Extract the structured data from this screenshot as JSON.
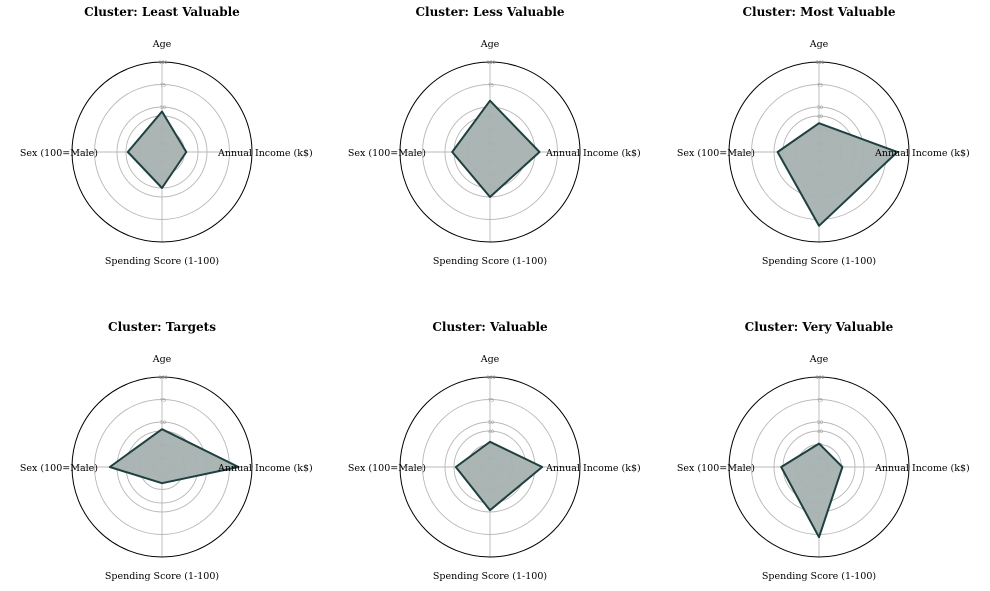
{
  "chart_data": [
    {
      "type": "radar",
      "title": "Cluster: Least Valuable",
      "axes": [
        "Age",
        "Annual Income (k$)",
        "Spending Score (1-100)",
        "Sex (100=Male)"
      ],
      "ticks": [
        10,
        25,
        40,
        50,
        75,
        100
      ],
      "tick_labels": [
        "10",
        "25",
        "40",
        "50",
        "75",
        "100"
      ],
      "rlim": [
        0,
        100
      ],
      "values": [
        45,
        27,
        40,
        38
      ],
      "color": "#1f4040",
      "fill_color": "#a7b2b0"
    },
    {
      "type": "radar",
      "title": "Cluster: Less Valuable",
      "axes": [
        "Age",
        "Annual Income (k$)",
        "Spending Score (1-100)",
        "Sex (100=Male)"
      ],
      "ticks": [
        10,
        25,
        40,
        50,
        75,
        100
      ],
      "tick_labels": [
        "10",
        "25",
        "40",
        "50",
        "75",
        "100"
      ],
      "rlim": [
        0,
        100
      ],
      "values": [
        57,
        55,
        50,
        42
      ],
      "color": "#1f4040",
      "fill_color": "#a7b2b0"
    },
    {
      "type": "radar",
      "title": "Cluster: Most Valuable",
      "axes": [
        "Age",
        "Annual Income (k$)",
        "Spending Score (1-100)",
        "Sex (100=Male)"
      ],
      "ticks": [
        10,
        25,
        40,
        50,
        75,
        100
      ],
      "tick_labels": [
        "10",
        "25",
        "40",
        "50",
        "75",
        "100"
      ],
      "rlim": [
        0,
        100
      ],
      "values": [
        32,
        87,
        82,
        46
      ],
      "color": "#1f4040",
      "fill_color": "#a7b2b0"
    },
    {
      "type": "radar",
      "title": "Cluster: Targets",
      "axes": [
        "Age",
        "Annual Income (k$)",
        "Spending Score (1-100)",
        "Sex (100=Male)"
      ],
      "ticks": [
        10,
        25,
        40,
        50,
        75,
        100
      ],
      "tick_labels": [
        "10",
        "25",
        "40",
        "50",
        "75",
        "100"
      ],
      "rlim": [
        0,
        100
      ],
      "values": [
        42,
        85,
        18,
        58
      ],
      "color": "#1f4040",
      "fill_color": "#a7b2b0"
    },
    {
      "type": "radar",
      "title": "Cluster: Valuable",
      "axes": [
        "Age",
        "Annual Income (k$)",
        "Spending Score (1-100)",
        "Sex (100=Male)"
      ],
      "ticks": [
        10,
        25,
        40,
        50,
        75,
        100
      ],
      "tick_labels": [
        "10",
        "25",
        "40",
        "50",
        "75",
        "100"
      ],
      "rlim": [
        0,
        100
      ],
      "values": [
        28,
        58,
        48,
        38
      ],
      "color": "#1f4040",
      "fill_color": "#a7b2b0"
    },
    {
      "type": "radar",
      "title": "Cluster: Very Valuable",
      "axes": [
        "Age",
        "Annual Income (k$)",
        "Spending Score (1-100)",
        "Sex (100=Male)"
      ],
      "ticks": [
        10,
        25,
        40,
        50,
        75,
        100
      ],
      "tick_labels": [
        "10",
        "25",
        "40",
        "50",
        "75",
        "100"
      ],
      "rlim": [
        0,
        100
      ],
      "values": [
        26,
        26,
        78,
        42
      ],
      "color": "#1f4040",
      "fill_color": "#a7b2b0"
    }
  ]
}
